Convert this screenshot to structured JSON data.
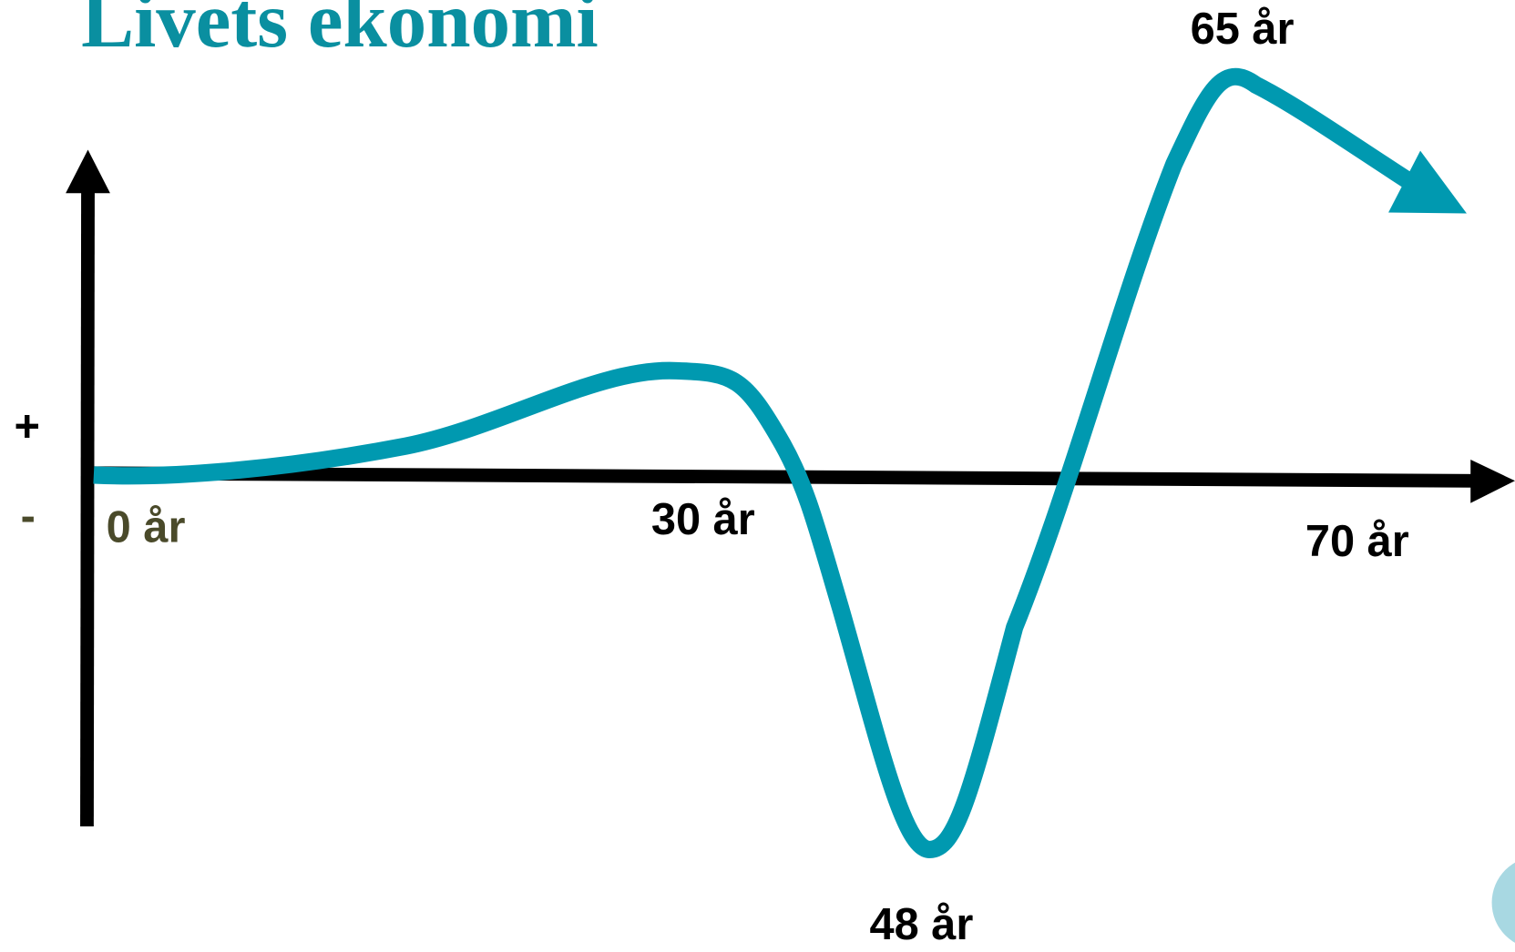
{
  "title": "Livets ekonomi",
  "axis_labels": {
    "plus": "+",
    "minus": "-"
  },
  "age_labels": {
    "start": "0 år",
    "thirty": "30 år",
    "fortyeight": "48 år",
    "sixtyfive": "65 år",
    "seventy": "70 år"
  }
}
